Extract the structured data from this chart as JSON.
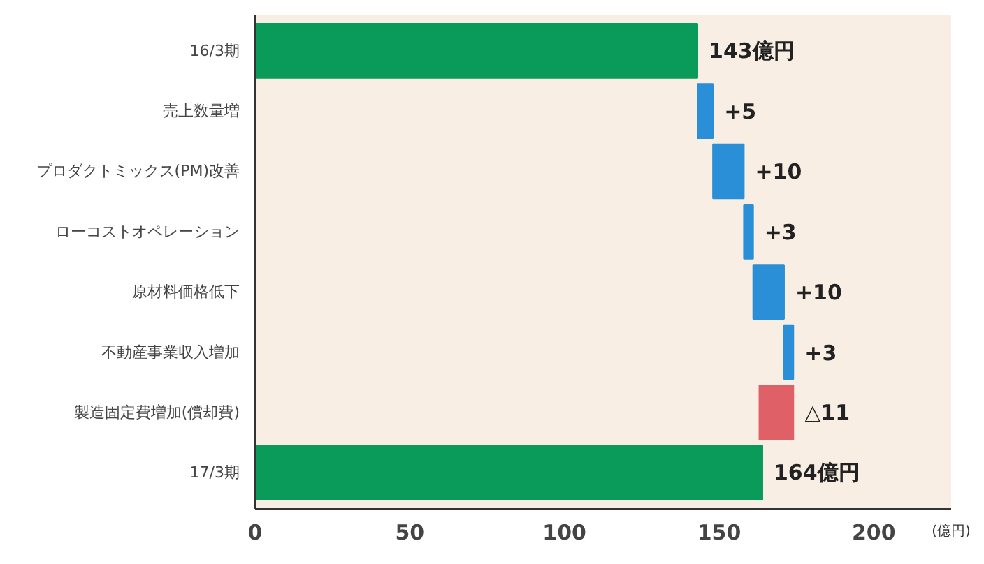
{
  "chart_data": {
    "type": "bar",
    "orientation": "horizontal",
    "xlabel": "(億円)",
    "categories": [
      "16/3期",
      "売上数量増",
      "プロダクトミックス(PM)改善",
      "ローコストオペレーション",
      "原材料価格低下",
      "不動産事業収入増加",
      "製造固定費増加(償却費)",
      "17/3期"
    ],
    "values": [
      143,
      5,
      10,
      3,
      10,
      3,
      -11,
      164
    ],
    "base": [
      0,
      143,
      148,
      158,
      161,
      171,
      174,
      0
    ],
    "colors": [
      "#0a9a5a",
      "#2a8fd6",
      "#2a8fd6",
      "#2a8fd6",
      "#2a8fd6",
      "#2a8fd6",
      "#e06068",
      "#0a9a5a"
    ],
    "value_labels": [
      "143億円",
      "+5",
      "+10",
      "+3",
      "+10",
      "+3",
      "△11",
      "164億円"
    ],
    "xlim": [
      0,
      225
    ],
    "xticks": [
      0,
      50,
      100,
      150,
      200
    ],
    "grid": false
  }
}
